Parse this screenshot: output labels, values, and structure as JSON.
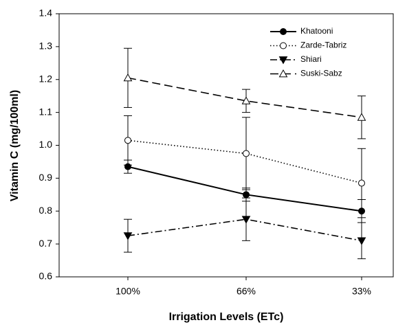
{
  "chart_data": {
    "type": "line",
    "x_label": "Irrigation Levels (ETc)",
    "y_label": "Vitamin C (mg/100ml)",
    "categories": [
      "100%",
      "66%",
      "33%"
    ],
    "ylim": [
      0.6,
      1.4
    ],
    "yticks": [
      0.6,
      0.7,
      0.8,
      0.9,
      {
        "value": 1,
        "label": "1.0"
      },
      1.1,
      1.2,
      1.3,
      1.4
    ],
    "legend": "upper right",
    "series": [
      {
        "name": "Khatooni",
        "color": "#000000",
        "dash": "solid",
        "marker": "circle-filled",
        "values": [
          0.935,
          0.85,
          0.8
        ],
        "errors": [
          0.02,
          0.02,
          0.035
        ]
      },
      {
        "name": "Zarde-Tabriz",
        "color": "#000000",
        "dash": "dotted",
        "marker": "circle-open",
        "values": [
          1.015,
          0.975,
          0.885
        ],
        "errors": [
          0.075,
          0.11,
          0.105
        ]
      },
      {
        "name": "Shiari",
        "color": "#000000",
        "dash": "dash-dot",
        "marker": "triangle-down-filled",
        "values": [
          0.725,
          0.775,
          0.71
        ],
        "errors": [
          0.05,
          0.065,
          0.055
        ]
      },
      {
        "name": "Suski-Sabz",
        "color": "#000000",
        "dash": "dashed",
        "marker": "triangle-up-open",
        "values": [
          1.205,
          1.135,
          1.085
        ],
        "errors": [
          0.09,
          0.035,
          0.065
        ]
      }
    ]
  }
}
